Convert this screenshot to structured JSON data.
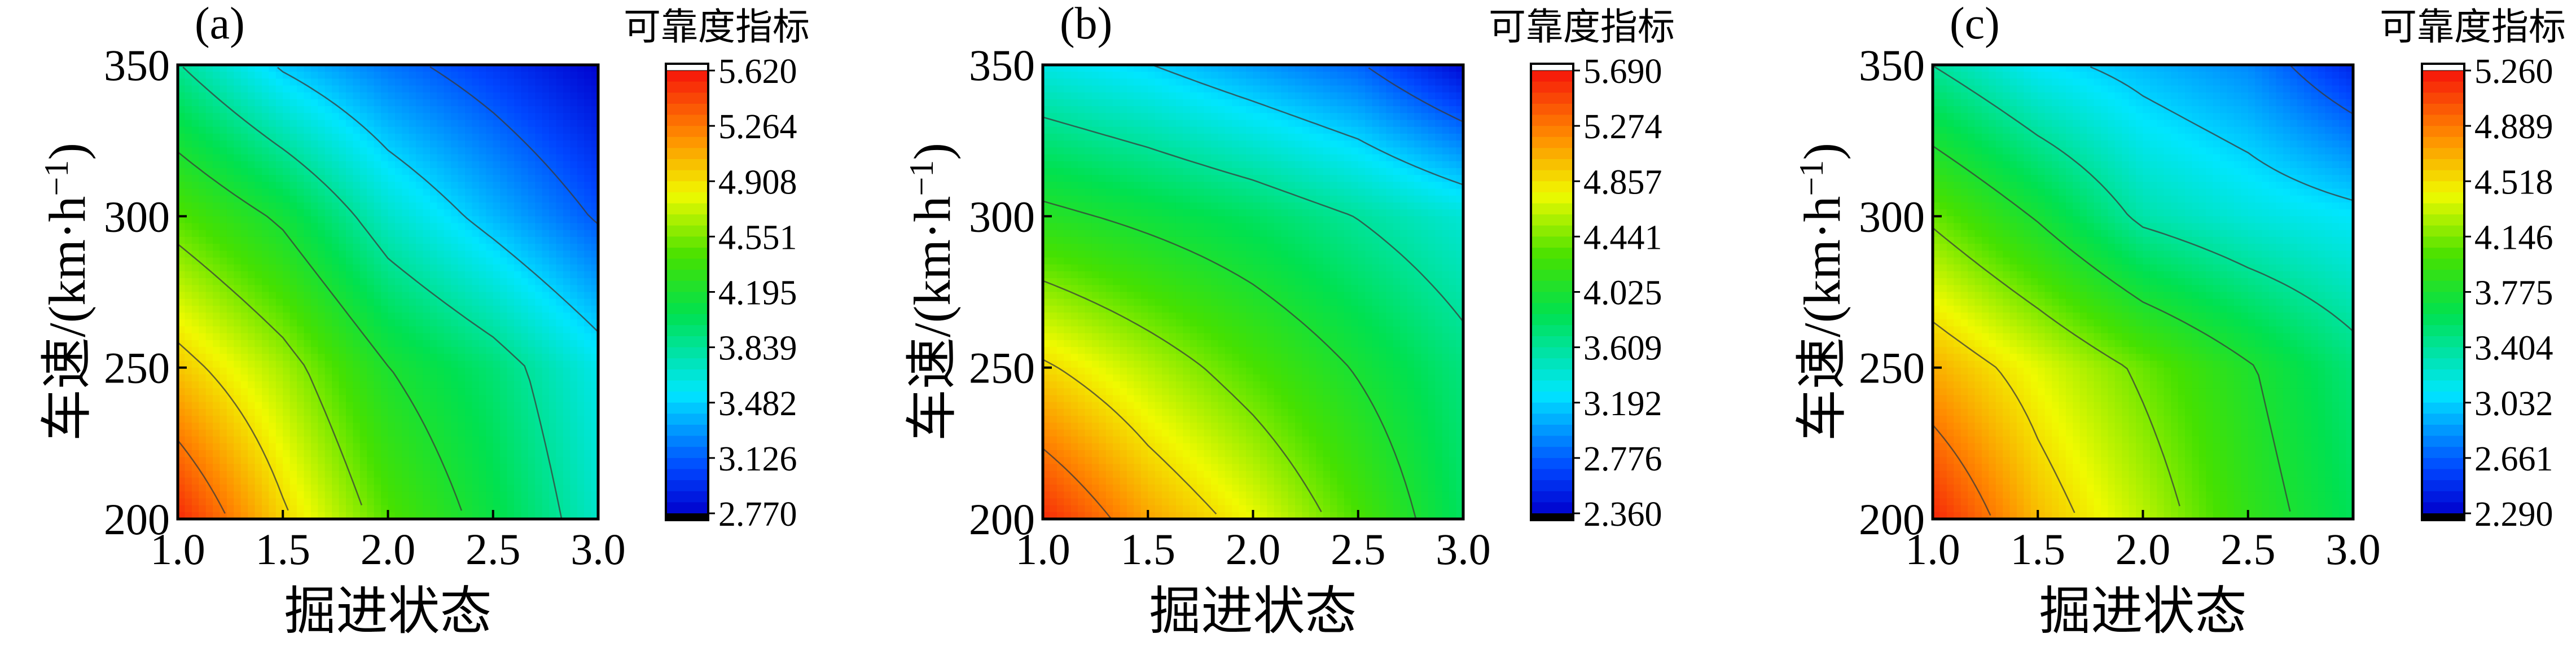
{
  "chart_data": [
    {
      "type": "heatmap",
      "panel": "(a)",
      "xlabel": "掘进状态",
      "ylabel_main": "车速/(km·h",
      "ylabel_sup": "−1",
      "ylabel_close": ")",
      "x": [
        1.0,
        1.5,
        2.0,
        2.5,
        3.0
      ],
      "y": [
        200,
        250,
        300,
        350
      ],
      "xlim": [
        1.0,
        3.0
      ],
      "ylim": [
        200,
        350
      ],
      "xticks": [
        "1.0",
        "1.5",
        "2.0",
        "2.5",
        "3.0"
      ],
      "yticks": [
        "200",
        "250",
        "300",
        "350"
      ],
      "z": [
        [
          5.55,
          4.95,
          4.45,
          4.1,
          3.7
        ],
        [
          5.0,
          4.65,
          4.2,
          3.95,
          3.6
        ],
        [
          4.45,
          4.15,
          3.7,
          3.4,
          3.1
        ],
        [
          3.85,
          3.45,
          3.2,
          3.0,
          2.78
        ]
      ],
      "colorbar": {
        "title": "可靠度指标",
        "min": 2.77,
        "max": 5.62,
        "ticks": [
          "5.620",
          "5.264",
          "4.908",
          "4.551",
          "4.195",
          "3.839",
          "3.482",
          "3.126",
          "2.770"
        ]
      }
    },
    {
      "type": "heatmap",
      "panel": "(b)",
      "xlabel": "掘进状态",
      "ylabel_main": "车速/(km·h",
      "ylabel_sup": "−1",
      "ylabel_close": ")",
      "x": [
        1.0,
        1.5,
        2.0,
        2.5,
        3.0
      ],
      "y": [
        200,
        250,
        300,
        350
      ],
      "xlim": [
        1.0,
        3.0
      ],
      "ylim": [
        200,
        350
      ],
      "xticks": [
        "1.0",
        "1.5",
        "2.0",
        "2.5",
        "3.0"
      ],
      "yticks": [
        "200",
        "250",
        "300",
        "350"
      ],
      "z": [
        [
          5.6,
          5.1,
          4.75,
          4.3,
          3.8
        ],
        [
          4.9,
          4.6,
          4.3,
          4.0,
          3.7
        ],
        [
          4.1,
          3.95,
          3.8,
          3.6,
          3.4
        ],
        [
          3.35,
          3.2,
          3.0,
          2.8,
          2.4
        ]
      ],
      "colorbar": {
        "title": "可靠度指标",
        "min": 2.36,
        "max": 5.69,
        "ticks": [
          "5.690",
          "5.274",
          "4.857",
          "4.441",
          "4.025",
          "3.609",
          "3.192",
          "2.776",
          "2.360"
        ]
      }
    },
    {
      "type": "heatmap",
      "panel": "(c)",
      "xlabel": "掘进状态",
      "ylabel_main": "车速/(km·h",
      "ylabel_sup": "−1",
      "ylabel_close": ")",
      "x": [
        1.0,
        1.5,
        2.0,
        2.5,
        3.0
      ],
      "y": [
        200,
        250,
        300,
        350
      ],
      "xlim": [
        1.0,
        3.0
      ],
      "ylim": [
        200,
        350
      ],
      "xticks": [
        "1.0",
        "1.5",
        "2.0",
        "2.5",
        "3.0"
      ],
      "yticks": [
        "200",
        "250",
        "300",
        "350"
      ],
      "z": [
        [
          5.2,
          4.65,
          4.3,
          3.9,
          3.6
        ],
        [
          4.7,
          4.4,
          4.1,
          3.8,
          3.5
        ],
        [
          4.1,
          3.75,
          3.35,
          3.2,
          3.1
        ],
        [
          3.4,
          3.1,
          2.95,
          2.8,
          2.45
        ]
      ],
      "colorbar": {
        "title": "可靠度指标",
        "min": 2.29,
        "max": 5.26,
        "ticks": [
          "5.260",
          "4.889",
          "4.518",
          "4.146",
          "3.775",
          "3.404",
          "3.032",
          "2.661",
          "2.290"
        ]
      }
    }
  ]
}
